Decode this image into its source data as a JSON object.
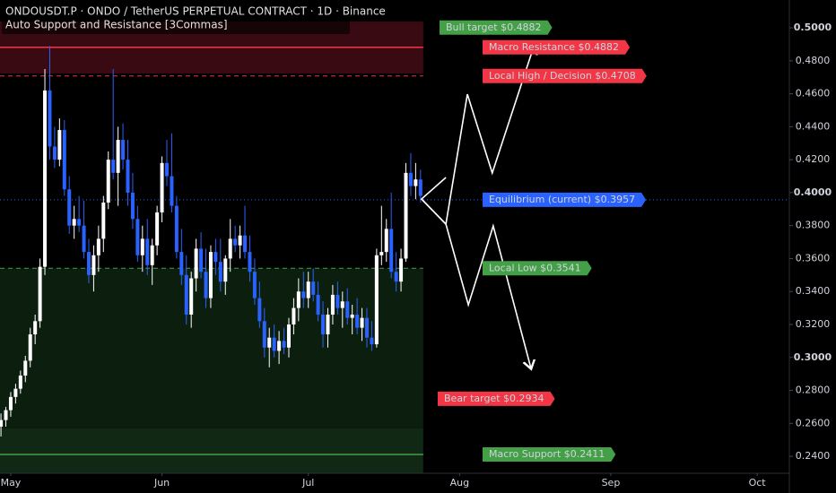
{
  "header": {
    "title": "ONDOUSDT.P · ONDO / TetherUS PERPETUAL CONTRACT · 1D · Binance",
    "indicator": "Auto Support and Resistance [3Commas]"
  },
  "chart_data": {
    "type": "candlestick",
    "x": [
      -2,
      -1,
      0,
      1,
      2,
      3,
      4,
      5,
      6,
      7,
      8,
      9,
      10,
      11,
      12,
      13,
      14,
      15,
      16,
      17,
      18,
      19,
      20,
      21,
      22,
      23,
      24,
      25,
      26,
      27,
      28,
      29,
      30,
      31,
      32,
      33,
      34,
      35,
      36,
      37,
      38,
      39,
      40,
      41,
      42,
      43,
      44,
      45,
      46,
      47,
      48,
      49,
      50,
      51,
      52,
      53,
      54,
      55,
      56,
      57,
      58,
      59,
      60,
      61,
      62,
      63,
      64,
      65,
      66,
      67,
      68,
      69,
      70,
      71,
      72,
      73,
      74,
      75,
      76,
      77,
      78,
      79,
      80,
      81,
      82,
      83,
      84
    ],
    "open": [
      0.258,
      0.262,
      0.268,
      0.276,
      0.281,
      0.289,
      0.298,
      0.314,
      0.322,
      0.355,
      0.462,
      0.428,
      0.42,
      0.438,
      0.402,
      0.38,
      0.384,
      0.38,
      0.364,
      0.35,
      0.362,
      0.372,
      0.394,
      0.42,
      0.412,
      0.432,
      0.42,
      0.4,
      0.384,
      0.362,
      0.372,
      0.356,
      0.368,
      0.388,
      0.418,
      0.41,
      0.392,
      0.364,
      0.35,
      0.326,
      0.348,
      0.366,
      0.352,
      0.336,
      0.364,
      0.358,
      0.346,
      0.36,
      0.372,
      0.368,
      0.374,
      0.364,
      0.352,
      0.336,
      0.322,
      0.306,
      0.312,
      0.304,
      0.31,
      0.306,
      0.32,
      0.33,
      0.34,
      0.336,
      0.346,
      0.338,
      0.326,
      0.314,
      0.326,
      0.338,
      0.33,
      0.334,
      0.324,
      0.326,
      0.318,
      0.324,
      0.312,
      0.308,
      0.362,
      0.364,
      0.378,
      0.352,
      0.346,
      0.36,
      0.412,
      0.404,
      0.408
    ],
    "high": [
      0.266,
      0.27,
      0.279,
      0.284,
      0.292,
      0.301,
      0.318,
      0.326,
      0.36,
      0.475,
      0.489,
      0.44,
      0.445,
      0.444,
      0.41,
      0.392,
      0.398,
      0.395,
      0.372,
      0.368,
      0.38,
      0.398,
      0.425,
      0.475,
      0.44,
      0.442,
      0.432,
      0.412,
      0.392,
      0.38,
      0.384,
      0.372,
      0.392,
      0.422,
      0.432,
      0.436,
      0.398,
      0.378,
      0.362,
      0.352,
      0.372,
      0.376,
      0.366,
      0.368,
      0.372,
      0.372,
      0.362,
      0.384,
      0.38,
      0.38,
      0.392,
      0.374,
      0.36,
      0.346,
      0.33,
      0.318,
      0.32,
      0.316,
      0.318,
      0.324,
      0.336,
      0.348,
      0.352,
      0.352,
      0.354,
      0.346,
      0.334,
      0.33,
      0.344,
      0.346,
      0.34,
      0.342,
      0.332,
      0.336,
      0.33,
      0.33,
      0.322,
      0.366,
      0.392,
      0.384,
      0.4,
      0.364,
      0.366,
      0.418,
      0.424,
      0.418,
      0.414
    ],
    "low": [
      0.252,
      0.258,
      0.264,
      0.272,
      0.278,
      0.285,
      0.294,
      0.308,
      0.318,
      0.35,
      0.42,
      0.415,
      0.416,
      0.398,
      0.375,
      0.372,
      0.376,
      0.36,
      0.345,
      0.34,
      0.352,
      0.364,
      0.39,
      0.408,
      0.392,
      0.414,
      0.392,
      0.378,
      0.358,
      0.352,
      0.35,
      0.344,
      0.362,
      0.382,
      0.404,
      0.388,
      0.36,
      0.344,
      0.32,
      0.318,
      0.34,
      0.348,
      0.33,
      0.33,
      0.35,
      0.34,
      0.338,
      0.352,
      0.364,
      0.36,
      0.36,
      0.346,
      0.332,
      0.318,
      0.3,
      0.294,
      0.3,
      0.296,
      0.302,
      0.3,
      0.314,
      0.322,
      0.33,
      0.33,
      0.334,
      0.322,
      0.306,
      0.306,
      0.32,
      0.326,
      0.318,
      0.32,
      0.314,
      0.314,
      0.31,
      0.306,
      0.304,
      0.306,
      0.356,
      0.358,
      0.348,
      0.34,
      0.34,
      0.358,
      0.398,
      0.396,
      0.394
    ],
    "close": [
      0.262,
      0.268,
      0.276,
      0.281,
      0.289,
      0.298,
      0.314,
      0.322,
      0.355,
      0.462,
      0.428,
      0.42,
      0.438,
      0.402,
      0.38,
      0.384,
      0.38,
      0.364,
      0.35,
      0.362,
      0.372,
      0.394,
      0.42,
      0.412,
      0.432,
      0.42,
      0.4,
      0.384,
      0.362,
      0.372,
      0.356,
      0.368,
      0.388,
      0.418,
      0.41,
      0.392,
      0.364,
      0.35,
      0.326,
      0.348,
      0.366,
      0.352,
      0.336,
      0.364,
      0.358,
      0.346,
      0.36,
      0.372,
      0.368,
      0.374,
      0.364,
      0.352,
      0.336,
      0.322,
      0.306,
      0.312,
      0.304,
      0.31,
      0.306,
      0.32,
      0.33,
      0.34,
      0.336,
      0.346,
      0.338,
      0.326,
      0.314,
      0.326,
      0.338,
      0.33,
      0.334,
      0.324,
      0.326,
      0.318,
      0.324,
      0.312,
      0.308,
      0.362,
      0.364,
      0.378,
      0.352,
      0.346,
      0.36,
      0.412,
      0.404,
      0.408,
      0.398
    ],
    "up_color": "#ffffff",
    "down_color": "#2962ff",
    "xlim": [
      -2.2,
      159.6
    ],
    "xticks": [
      {
        "value": 0,
        "label": "May"
      },
      {
        "value": 31,
        "label": "Jun"
      },
      {
        "value": 61,
        "label": "Jul"
      },
      {
        "value": 92,
        "label": "Aug"
      },
      {
        "value": 123,
        "label": "Sep"
      },
      {
        "value": 153,
        "label": "Oct"
      }
    ],
    "ylim": [
      0.2297,
      0.5169
    ],
    "yticks": [
      {
        "value": 0.24,
        "label": "0.2400"
      },
      {
        "value": 0.26,
        "label": "0.2600"
      },
      {
        "value": 0.28,
        "label": "0.2800"
      },
      {
        "value": 0.3,
        "label": "0.3000"
      },
      {
        "value": 0.32,
        "label": "0.3200"
      },
      {
        "value": 0.34,
        "label": "0.3400"
      },
      {
        "value": 0.36,
        "label": "0.3600"
      },
      {
        "value": 0.38,
        "label": "0.3800"
      },
      {
        "value": 0.4,
        "label": "0.4000"
      },
      {
        "value": 0.42,
        "label": "0.4200"
      },
      {
        "value": 0.44,
        "label": "0.4400"
      },
      {
        "value": 0.46,
        "label": "0.4600"
      },
      {
        "value": 0.48,
        "label": "0.4800"
      },
      {
        "value": 0.5,
        "label": "0.5000"
      }
    ],
    "zones": [
      {
        "from": 0.4723,
        "to": 0.5038,
        "color": "#3a0a12"
      },
      {
        "from": 0.257,
        "to": 0.3541,
        "color": "#0c1f0e"
      },
      {
        "from": 0.2297,
        "to": 0.257,
        "color": "#112814"
      }
    ],
    "levels": [
      {
        "label": "Macro Resistance $0.4882",
        "value": 0.4882,
        "color": "#f23645",
        "style": "solid"
      },
      {
        "label": "Local High / Decision $0.4708",
        "value": 0.4708,
        "color": "#f23645",
        "style": "dashed"
      },
      {
        "label": "Equilibrium (current) $0.3957",
        "value": 0.3957,
        "color": "#2962ff",
        "style": "dotted"
      },
      {
        "label": "Local Low $0.3541",
        "value": 0.3541,
        "color": "#43a047",
        "style": "dashed"
      },
      {
        "label": "Macro Support $0.2411",
        "value": 0.2411,
        "color": "#43a047",
        "style": "solid"
      }
    ],
    "targets": [
      {
        "label": "Bull target $0.4882",
        "value": 0.4882,
        "color": "#43a047"
      },
      {
        "label": "Bear target $0.2934",
        "value": 0.2934,
        "color": "#f23645"
      }
    ],
    "projections": [
      {
        "x": [
          89.2,
          84.2,
          89.2,
          93.6,
          98.7,
          107.2
        ],
        "y": [
          0.4092,
          0.3961,
          0.3809,
          0.4597,
          0.4119,
          0.4886
        ]
      },
      {
        "x": [
          84.2,
          89.2,
          93.8,
          98.9,
          106.6
        ],
        "y": [
          0.3961,
          0.3809,
          0.3319,
          0.3798,
          0.2938
        ]
      }
    ]
  }
}
